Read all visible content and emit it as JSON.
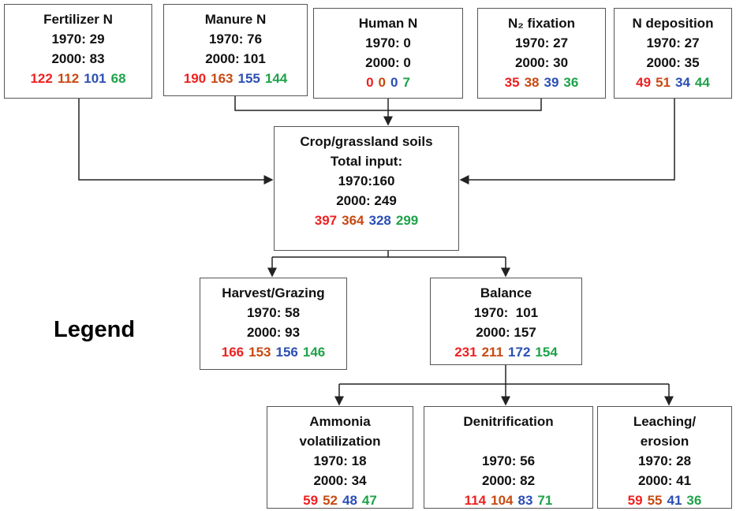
{
  "nodes": [
    {
      "title": [
        "Fertilizer N"
      ],
      "lines": [
        "1970: 29",
        "2000: 83"
      ],
      "values": [
        122,
        112,
        101,
        68
      ]
    },
    {
      "title": [
        "Manure N"
      ],
      "lines": [
        "1970: 76",
        "2000: 101"
      ],
      "values": [
        190,
        163,
        155,
        144
      ]
    },
    {
      "title": [
        "Human N"
      ],
      "lines": [
        "1970: 0",
        "2000: 0"
      ],
      "values": [
        0,
        0,
        0,
        7
      ]
    },
    {
      "title": [
        "N₂ fixation"
      ],
      "lines": [
        "1970: 27",
        "2000: 30"
      ],
      "values": [
        35,
        38,
        39,
        36
      ]
    },
    {
      "title": [
        "N deposition"
      ],
      "lines": [
        "1970: 27",
        "2000: 35"
      ],
      "values": [
        49,
        51,
        34,
        44
      ]
    },
    {
      "title": [
        "Crop/grassland soils",
        "Total input:"
      ],
      "lines": [
        "1970:160",
        "2000: 249"
      ],
      "values": [
        397,
        364,
        328,
        299
      ]
    },
    {
      "title": [
        "Harvest/Grazing"
      ],
      "lines": [
        "1970: 58",
        "2000: 93"
      ],
      "values": [
        166,
        153,
        156,
        146
      ]
    },
    {
      "title": [
        "Balance"
      ],
      "lines": [
        "1970:  101",
        "2000: 157"
      ],
      "values": [
        231,
        211,
        172,
        154
      ]
    },
    {
      "title": [
        "Ammonia",
        "volatilization"
      ],
      "lines": [
        "1970: 18",
        "2000: 34"
      ],
      "values": [
        59,
        52,
        48,
        47
      ]
    },
    {
      "title": [
        "Denitrification"
      ],
      "lines": [
        "1970: 56",
        "2000: 82"
      ],
      "values": [
        114,
        104,
        83,
        71
      ]
    },
    {
      "title": [
        "Leaching/",
        "erosion"
      ],
      "lines": [
        "1970: 28",
        "2000: 41"
      ],
      "values": [
        59,
        55,
        41,
        36
      ]
    }
  ],
  "legend": "Legend"
}
